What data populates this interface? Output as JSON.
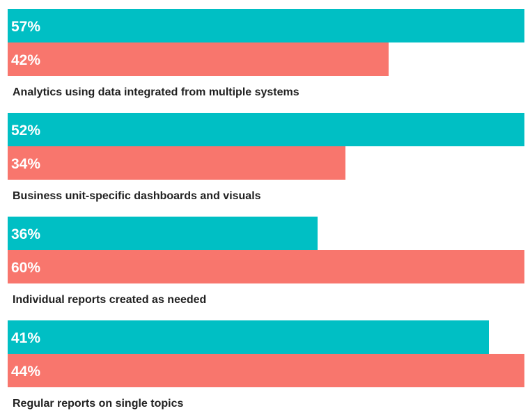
{
  "chart_data": {
    "type": "bar",
    "orientation": "horizontal",
    "title": "",
    "value_suffix": "%",
    "legend": "none",
    "axes": "none",
    "grid": false,
    "background": "#FFFFFF",
    "bar_colors": [
      "#00BFC4",
      "#F8766D"
    ],
    "text_colors": {
      "value_label": "#FFFFFF",
      "category_label": "#212121"
    },
    "layout_note": "two bars per category, no gap between them; each pair is scaled relative to the pair maximum so the larger bar spans the full chart width",
    "groups": [
      {
        "category": "Analytics using data integrated from multiple systems",
        "values": [
          57,
          42
        ],
        "value_labels": [
          "57%",
          "42%"
        ]
      },
      {
        "category": "Business unit-specific dashboards and visuals",
        "values": [
          52,
          34
        ],
        "value_labels": [
          "52%",
          "34%"
        ]
      },
      {
        "category": "Individual reports created as needed",
        "values": [
          36,
          60
        ],
        "value_labels": [
          "36%",
          "60%"
        ]
      },
      {
        "category": "Regular reports on single topics",
        "values": [
          41,
          44
        ],
        "value_labels": [
          "41%",
          "44%"
        ]
      }
    ]
  }
}
